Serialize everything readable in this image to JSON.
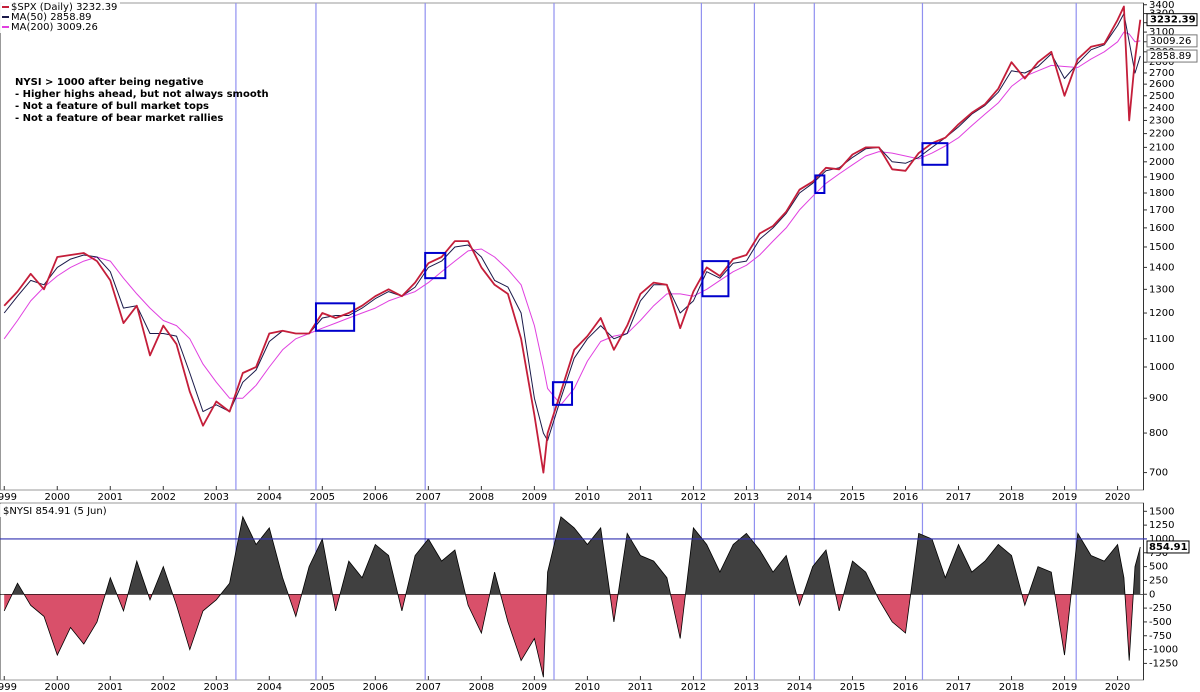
{
  "chart_data": [
    {
      "type": "line",
      "log_scale": true,
      "annotation": [
        "NYSI > 1000 after being negative",
        "- Higher highs ahead, but not always smooth",
        "- Not a feature of bull market tops",
        "- Not a feature of bear market rallies"
      ],
      "x": [
        1999,
        1999.25,
        1999.5,
        1999.75,
        2000,
        2000.25,
        2000.5,
        2000.75,
        2001,
        2001.25,
        2001.5,
        2001.75,
        2002,
        2002.25,
        2002.5,
        2002.75,
        2003,
        2003.25,
        2003.5,
        2003.75,
        2004,
        2004.25,
        2004.5,
        2004.75,
        2005,
        2005.25,
        2005.5,
        2005.75,
        2006,
        2006.25,
        2006.5,
        2006.75,
        2007,
        2007.25,
        2007.5,
        2007.75,
        2008,
        2008.25,
        2008.5,
        2008.75,
        2009,
        2009.17,
        2009.25,
        2009.5,
        2009.75,
        2010,
        2010.25,
        2010.5,
        2010.75,
        2011,
        2011.25,
        2011.5,
        2011.75,
        2012,
        2012.25,
        2012.5,
        2012.75,
        2013,
        2013.25,
        2013.5,
        2013.75,
        2014,
        2014.25,
        2014.5,
        2014.75,
        2015,
        2015.25,
        2015.5,
        2015.75,
        2016,
        2016.25,
        2016.5,
        2016.75,
        2017,
        2017.25,
        2017.5,
        2017.75,
        2018,
        2018.25,
        2018.5,
        2018.75,
        2019,
        2019.25,
        2019.5,
        2019.75,
        2020,
        2020.12,
        2020.22,
        2020.33,
        2020.43
      ],
      "series": [
        {
          "name": "MA(200)",
          "color": "#e040e0",
          "values": [
            1100,
            1170,
            1250,
            1310,
            1360,
            1400,
            1430,
            1450,
            1430,
            1350,
            1280,
            1220,
            1170,
            1150,
            1100,
            1010,
            950,
            900,
            900,
            940,
            1000,
            1060,
            1100,
            1120,
            1140,
            1160,
            1180,
            1200,
            1220,
            1250,
            1270,
            1290,
            1330,
            1380,
            1430,
            1480,
            1490,
            1450,
            1390,
            1320,
            1150,
            1000,
            930,
            880,
            930,
            1020,
            1090,
            1110,
            1120,
            1170,
            1230,
            1280,
            1280,
            1270,
            1300,
            1340,
            1380,
            1410,
            1460,
            1530,
            1600,
            1700,
            1780,
            1860,
            1920,
            1980,
            2040,
            2070,
            2060,
            2040,
            2020,
            2060,
            2110,
            2170,
            2260,
            2350,
            2440,
            2580,
            2670,
            2720,
            2770,
            2760,
            2750,
            2830,
            2900,
            3000,
            3100,
            3080,
            3000,
            3009.26
          ]
        },
        {
          "name": "MA(50)",
          "color": "#1a1a4a",
          "values": [
            1200,
            1270,
            1340,
            1320,
            1400,
            1440,
            1460,
            1450,
            1380,
            1220,
            1230,
            1120,
            1120,
            1110,
            980,
            860,
            880,
            860,
            950,
            990,
            1090,
            1130,
            1120,
            1120,
            1180,
            1190,
            1190,
            1220,
            1260,
            1290,
            1270,
            1310,
            1400,
            1430,
            1500,
            1510,
            1450,
            1340,
            1310,
            1200,
            900,
            800,
            780,
            900,
            1030,
            1100,
            1150,
            1100,
            1120,
            1250,
            1320,
            1320,
            1200,
            1250,
            1380,
            1350,
            1420,
            1430,
            1540,
            1600,
            1680,
            1800,
            1860,
            1940,
            1960,
            2030,
            2090,
            2100,
            2000,
            1990,
            2030,
            2100,
            2170,
            2250,
            2350,
            2420,
            2530,
            2720,
            2700,
            2760,
            2880,
            2650,
            2790,
            2920,
            2970,
            3170,
            3300,
            3000,
            2700,
            2858.89
          ]
        },
        {
          "name": "$SPX (Daily)",
          "color": "#c41e3a",
          "values": [
            1230,
            1290,
            1370,
            1300,
            1450,
            1460,
            1470,
            1430,
            1340,
            1160,
            1230,
            1040,
            1150,
            1080,
            920,
            820,
            890,
            860,
            980,
            1000,
            1120,
            1130,
            1120,
            1120,
            1200,
            1180,
            1200,
            1230,
            1270,
            1300,
            1270,
            1330,
            1420,
            1450,
            1530,
            1530,
            1400,
            1320,
            1280,
            1100,
            850,
            700,
            800,
            920,
            1060,
            1110,
            1180,
            1060,
            1150,
            1280,
            1330,
            1320,
            1140,
            1290,
            1400,
            1360,
            1440,
            1460,
            1570,
            1610,
            1690,
            1820,
            1870,
            1960,
            1950,
            2050,
            2100,
            2100,
            1950,
            1940,
            2060,
            2130,
            2170,
            2270,
            2360,
            2430,
            2560,
            2800,
            2650,
            2800,
            2900,
            2500,
            2830,
            2950,
            2980,
            3230,
            3380,
            2300,
            2830,
            3232.39
          ]
        }
      ],
      "xlim": [
        1998.92,
        2020.48
      ],
      "xticks": [
        1999,
        2000,
        2001,
        2002,
        2003,
        2004,
        2005,
        2006,
        2007,
        2008,
        2009,
        2010,
        2011,
        2012,
        2013,
        2014,
        2015,
        2016,
        2017,
        2018,
        2019,
        2020
      ],
      "ylim": [
        660,
        3420
      ],
      "yticks": [
        700,
        800,
        900,
        1000,
        1100,
        1200,
        1300,
        1400,
        1500,
        1600,
        1700,
        1800,
        1900,
        2000,
        2100,
        2200,
        2300,
        2400,
        2500,
        2600,
        2700,
        2800,
        2900,
        3000,
        3100,
        3200,
        3300,
        3400
      ],
      "signals": {
        "color": "#9090f0",
        "x": [
          2003.37,
          2004.88,
          2006.94,
          2009.37,
          2012.15,
          2013.15,
          2014.28,
          2016.32,
          2019.22
        ]
      },
      "highlights": {
        "color": "#0000cc",
        "boxes": [
          [
            2004.88,
            2005.6,
            1130,
            1240
          ],
          [
            2006.94,
            2007.32,
            1350,
            1470
          ],
          [
            2009.35,
            2009.71,
            880,
            950
          ],
          [
            2012.17,
            2012.66,
            1270,
            1430
          ],
          [
            2014.3,
            2014.47,
            1800,
            1910
          ],
          [
            2016.32,
            2016.79,
            1980,
            2130
          ]
        ]
      }
    },
    {
      "type": "area",
      "x": [
        1999,
        1999.25,
        1999.5,
        1999.75,
        2000,
        2000.25,
        2000.5,
        2000.75,
        2001,
        2001.25,
        2001.5,
        2001.75,
        2002,
        2002.25,
        2002.5,
        2002.75,
        2003,
        2003.25,
        2003.5,
        2003.75,
        2004,
        2004.25,
        2004.5,
        2004.75,
        2005,
        2005.25,
        2005.5,
        2005.75,
        2006,
        2006.25,
        2006.5,
        2006.75,
        2007,
        2007.25,
        2007.5,
        2007.75,
        2008,
        2008.25,
        2008.5,
        2008.75,
        2009,
        2009.17,
        2009.25,
        2009.5,
        2009.75,
        2010,
        2010.25,
        2010.5,
        2010.75,
        2011,
        2011.25,
        2011.5,
        2011.75,
        2012,
        2012.25,
        2012.5,
        2012.75,
        2013,
        2013.25,
        2013.5,
        2013.75,
        2014,
        2014.25,
        2014.5,
        2014.75,
        2015,
        2015.25,
        2015.5,
        2015.75,
        2016,
        2016.25,
        2016.5,
        2016.75,
        2017,
        2017.25,
        2017.5,
        2017.75,
        2018,
        2018.25,
        2018.5,
        2018.75,
        2019,
        2019.25,
        2019.5,
        2019.75,
        2020,
        2020.12,
        2020.22,
        2020.33,
        2020.43
      ],
      "series": [
        {
          "name": "$NYSI",
          "date_label": "(5 Jun)",
          "color": "#404040",
          "negative_color": "#d9506a",
          "values": [
            -300,
            200,
            -200,
            -400,
            -1100,
            -600,
            -900,
            -500,
            300,
            -300,
            600,
            -100,
            500,
            -200,
            -1000,
            -300,
            -100,
            200,
            1400,
            900,
            1200,
            300,
            -400,
            500,
            1000,
            -300,
            600,
            300,
            900,
            700,
            -300,
            700,
            1000,
            600,
            800,
            -200,
            -700,
            400,
            -500,
            -1200,
            -800,
            -1500,
            400,
            1400,
            1200,
            900,
            1200,
            -500,
            1100,
            700,
            600,
            300,
            -800,
            1200,
            900,
            400,
            900,
            1100,
            800,
            400,
            700,
            -200,
            500,
            800,
            -300,
            600,
            400,
            -100,
            -500,
            -700,
            1100,
            1000,
            300,
            900,
            400,
            600,
            900,
            700,
            -200,
            500,
            400,
            -1100,
            1100,
            700,
            600,
            900,
            300,
            -1200,
            500,
            854.91
          ]
        }
      ],
      "xlim": [
        1998.92,
        2020.48
      ],
      "xticks": [
        1999,
        2000,
        2001,
        2002,
        2003,
        2004,
        2005,
        2006,
        2007,
        2008,
        2009,
        2010,
        2011,
        2012,
        2013,
        2014,
        2015,
        2016,
        2017,
        2018,
        2019,
        2020
      ],
      "ylim": [
        -1550,
        1650
      ],
      "yticks": [
        1500,
        1250,
        1000,
        750,
        500,
        250,
        0,
        -250,
        -500,
        -750,
        -1000,
        -1250
      ],
      "hline": {
        "value": 1000,
        "color": "#3030b0"
      }
    }
  ]
}
